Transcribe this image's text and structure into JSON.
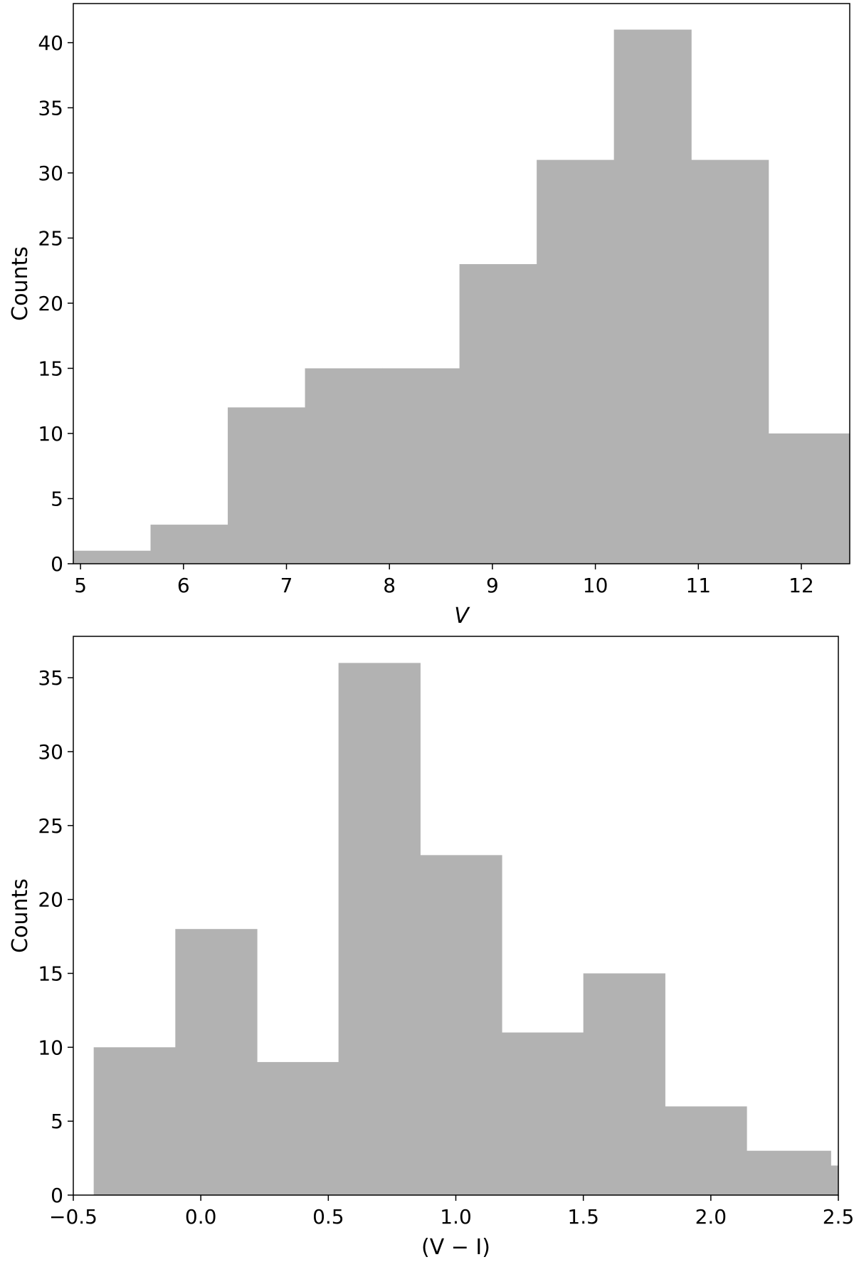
{
  "chart_data": [
    {
      "type": "bar",
      "subtype": "histogram",
      "xlabel": "V",
      "ylabel": "Counts",
      "xlim": [
        4.93,
        12.47
      ],
      "ylim": [
        0,
        43
      ],
      "xticks": [
        5,
        6,
        7,
        8,
        9,
        10,
        11,
        12
      ],
      "yticks": [
        0,
        5,
        10,
        15,
        20,
        25,
        30,
        35,
        40
      ],
      "bin_edges": [
        4.93,
        5.68,
        6.43,
        7.18,
        7.93,
        8.68,
        9.43,
        10.18,
        10.93,
        11.68,
        12.47
      ],
      "values": [
        1,
        3,
        12,
        15,
        15,
        23,
        31,
        41,
        31,
        10
      ],
      "bar_color": "#b2b2b2",
      "grid": false
    },
    {
      "type": "bar",
      "subtype": "histogram",
      "xlabel": "(V − I)",
      "ylabel": "Counts",
      "xlim": [
        -0.5,
        2.5
      ],
      "ylim": [
        0,
        37.8
      ],
      "xticks": [
        -0.5,
        0.0,
        0.5,
        1.0,
        1.5,
        2.0,
        2.5
      ],
      "xtick_labels": [
        "−0.5",
        "0.0",
        "0.5",
        "1.0",
        "1.5",
        "2.0",
        "2.5"
      ],
      "yticks": [
        0,
        5,
        10,
        15,
        20,
        25,
        30,
        35
      ],
      "bin_edges": [
        -0.42,
        -0.1,
        0.22,
        0.54,
        0.86,
        1.18,
        1.5,
        1.82,
        2.14,
        2.47,
        2.5
      ],
      "values": [
        10,
        18,
        9,
        36,
        23,
        11,
        15,
        6,
        3,
        2
      ],
      "bar_color": "#b2b2b2",
      "grid": false
    }
  ]
}
